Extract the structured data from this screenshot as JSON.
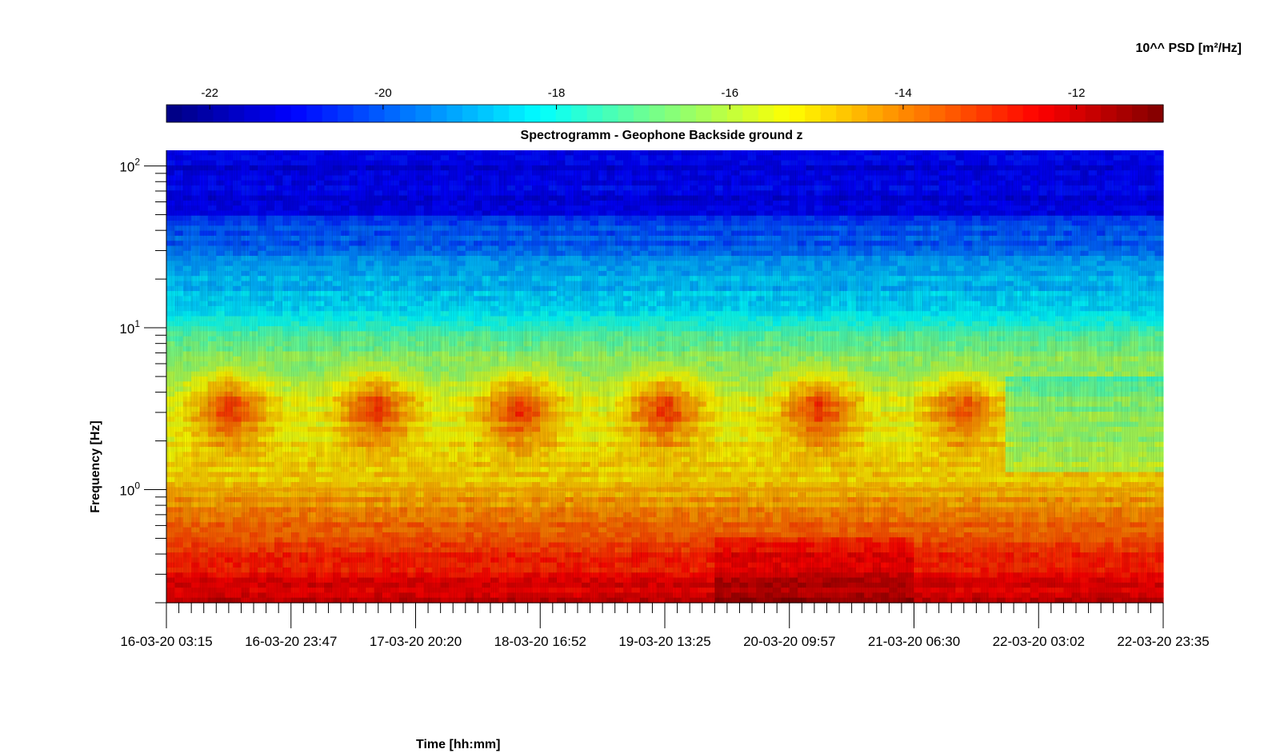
{
  "chart_data": {
    "type": "heatmap",
    "title": "Spectrogramm - Geophone Backside ground z",
    "xlabel": "Time [hh:mm]",
    "ylabel": "Frequency [Hz]",
    "colorbar_label": "10^^ PSD [m²/Hz]",
    "colormap": "jet",
    "colorbar_range": [
      -22.5,
      -11
    ],
    "colorbar_ticks": [
      -22,
      -20,
      -18,
      -16,
      -14,
      -12
    ],
    "y_scale": "log",
    "ylim": [
      0.2,
      125
    ],
    "y_major_ticks": [
      {
        "value": 100,
        "base": "10",
        "exp": "2"
      },
      {
        "value": 10,
        "base": "10",
        "exp": "1"
      },
      {
        "value": 1,
        "base": "10",
        "exp": "0"
      }
    ],
    "x_tick_labels": [
      "16-03-20 03:15",
      "16-03-20 23:47",
      "17-03-20 20:20",
      "18-03-20 16:52",
      "19-03-20 13:25",
      "20-03-20 09:57",
      "21-03-20 06:30",
      "22-03-20 03:02",
      "22-03-20 23:35"
    ],
    "x_minor_per_major": 10,
    "grid": false,
    "colorbar_position": "top",
    "daily_activity_band_hz": [
      1.5,
      6
    ],
    "persistent_line_hz": 1.0,
    "description_levels": {
      "above_50hz": -21,
      "10hz_to_30hz": -18,
      "2hz_to_8hz": -14.5,
      "below_0.5hz": -12
    }
  }
}
